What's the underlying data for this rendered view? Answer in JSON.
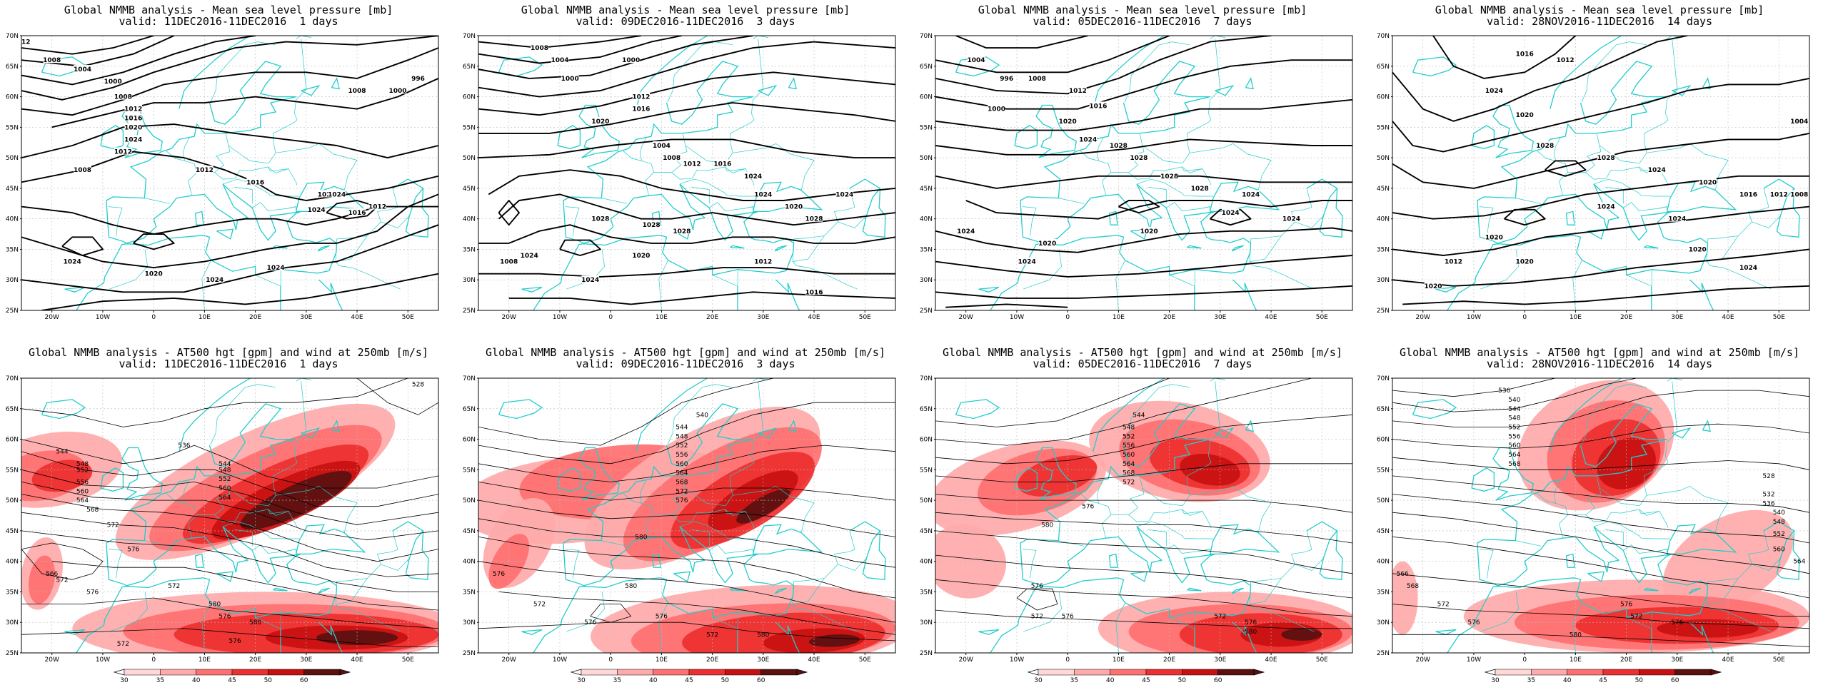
{
  "palette": {
    "coast": "#22cccc",
    "wind": [
      "#ffd7d7",
      "#ffaaaa",
      "#ff7070",
      "#ee2f2f",
      "#c81010",
      "#5a1010"
    ],
    "contour": "#000000",
    "grid": "#bbbbbb"
  },
  "axes": {
    "lat_labels": [
      "70N",
      "65N",
      "60N",
      "55N",
      "50N",
      "45N",
      "40N",
      "35N",
      "30N",
      "25N"
    ],
    "lon_labels": [
      "20W",
      "10W",
      "0",
      "10E",
      "20E",
      "30E",
      "40E",
      "50E"
    ]
  },
  "colorbar": {
    "ticks": [
      "30",
      "35",
      "40",
      "45",
      "50",
      "60"
    ]
  },
  "panels": [
    {
      "kind": "mslp",
      "title1": "Global NMMB analysis - Mean sea level pressure [mb]",
      "title2": "valid: 11DEC2016-11DEC2016  1 days",
      "labels": [
        "1012",
        "1008",
        "1004",
        "1000",
        "1008",
        "1012",
        "1016",
        "1020",
        "1024",
        "1012",
        "1008",
        "1012",
        "1016",
        "1020",
        "1024",
        "1024",
        "1016",
        "1012",
        "1008",
        "1000",
        "996",
        "1024",
        "1020",
        "1024",
        "1024"
      ]
    },
    {
      "kind": "mslp",
      "title1": "Global NMMB analysis - Mean sea level pressure [mb]",
      "title2": "valid: 09DEC2016-11DEC2016  3 days",
      "labels": [
        "1008",
        "1004",
        "1000",
        "1000",
        "1012",
        "1016",
        "1020",
        "1004",
        "1008",
        "1012",
        "1016",
        "1024",
        "1028",
        "1028",
        "1028",
        "1024",
        "1020",
        "1024",
        "1028",
        "1024",
        "1024",
        "1012",
        "1016",
        "1008",
        "1020"
      ]
    },
    {
      "kind": "mslp",
      "title1": "Global NMMB analysis - Mean sea level pressure [mb]",
      "title2": "valid: 05DEC2016-11DEC2016  7 days",
      "labels": [
        "1004",
        "1008",
        "1012",
        "1016",
        "1020",
        "1024",
        "1028",
        "996",
        "1000",
        "1028",
        "1028",
        "1028",
        "1024",
        "1024",
        "1024",
        "1024",
        "1020",
        "1020",
        "1024"
      ]
    },
    {
      "kind": "mslp",
      "title1": "Global NMMB analysis - Mean sea level pressure [mb]",
      "title2": "valid: 28NOV2016-11DEC2016  14 days",
      "labels": [
        "1016",
        "1012",
        "1024",
        "1020",
        "1028",
        "1028",
        "1024",
        "1020",
        "1016",
        "1012",
        "1008",
        "1004",
        "1024",
        "1024",
        "1020",
        "1020",
        "1020",
        "1024",
        "1012",
        "1020"
      ]
    },
    {
      "kind": "z500",
      "title1": "Global NMMB analysis - AT500 hgt [gpm] and wind at 250mb [m/s]",
      "title2": "valid: 11DEC2016-11DEC2016  1 days",
      "labels": [
        "528",
        "544",
        "548",
        "552",
        "556",
        "560",
        "564",
        "568",
        "572",
        "576",
        "536",
        "544",
        "548",
        "552",
        "560",
        "564",
        "566",
        "572",
        "576",
        "572",
        "580",
        "576",
        "580",
        "576",
        "572"
      ]
    },
    {
      "kind": "z500",
      "title1": "Global NMMB analysis - AT500 hgt [gpm] and wind at 250mb [m/s]",
      "title2": "valid: 09DEC2016-11DEC2016  3 days",
      "labels": [
        "540",
        "544",
        "548",
        "552",
        "556",
        "560",
        "564",
        "568",
        "572",
        "576",
        "580",
        "576",
        "572",
        "576",
        "580",
        "576",
        "572",
        "580"
      ]
    },
    {
      "kind": "z500",
      "title1": "Global NMMB analysis - AT500 hgt [gpm] and wind at 250mb [m/s]",
      "title2": "valid: 05DEC2016-11DEC2016  7 days",
      "labels": [
        "544",
        "548",
        "552",
        "556",
        "560",
        "564",
        "568",
        "572",
        "576",
        "580",
        "576",
        "572",
        "576",
        "572",
        "576",
        "580"
      ]
    },
    {
      "kind": "z500",
      "title1": "Global NMMB analysis - AT500 hgt [gpm] and wind at 250mb [m/s]",
      "title2": "valid: 28NOV2016-11DEC2016  14 days",
      "labels": [
        "536",
        "540",
        "544",
        "548",
        "552",
        "556",
        "560",
        "564",
        "568",
        "528",
        "532",
        "536",
        "540",
        "548",
        "552",
        "560",
        "564",
        "566",
        "568",
        "572",
        "576",
        "576",
        "572",
        "576",
        "580"
      ]
    }
  ]
}
